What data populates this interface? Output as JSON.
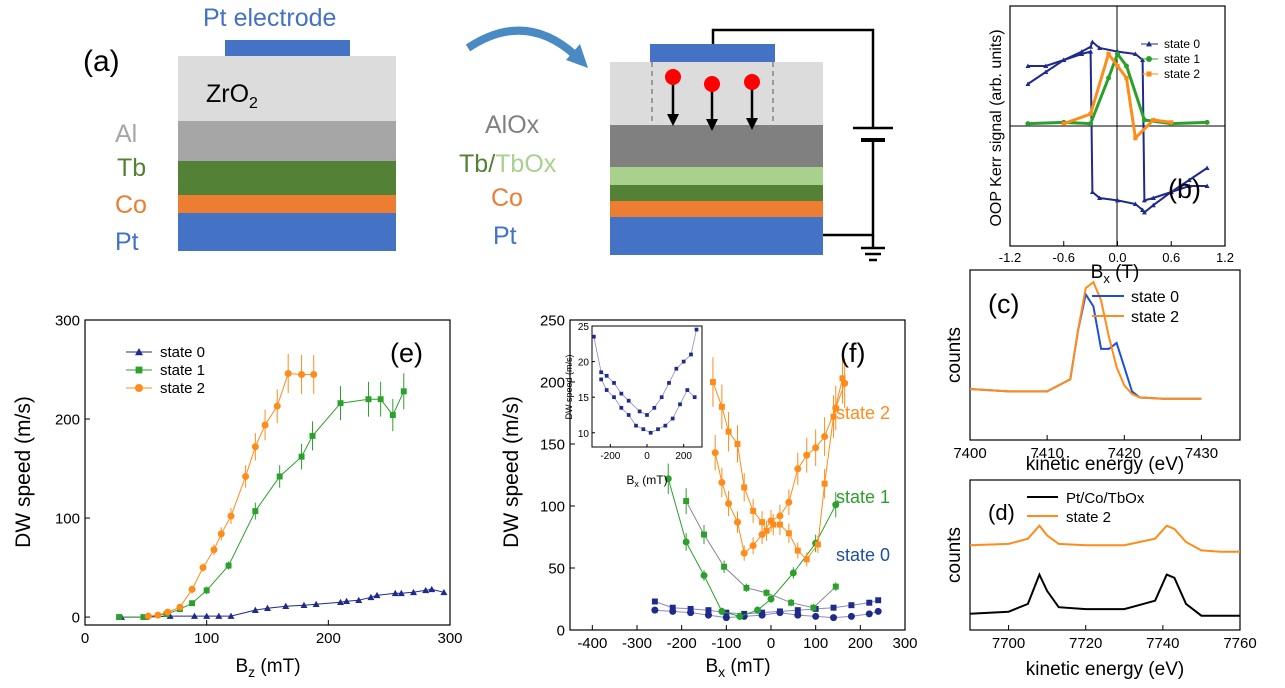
{
  "panel_a": {
    "panel_label": "(a)",
    "electrode_label": "Pt electrode",
    "left_stack": [
      {
        "label": "ZrO",
        "sub": "2",
        "color": "#dcdcdc"
      },
      {
        "label": "Al",
        "color": "#a6a6a6"
      },
      {
        "label": "Tb",
        "color": "#538135"
      },
      {
        "label": "Co",
        "color": "#ed7d31"
      },
      {
        "label": "Pt",
        "color": "#4472c4"
      }
    ],
    "right_labels": {
      "aloxs": "AlOx",
      "tb": "Tb",
      "slash": "/",
      "tbox": "TbOx",
      "co": "Co",
      "pt": "Pt"
    },
    "colors": {
      "electrode": "#4472c4",
      "alox": "#808080",
      "tbox": "#a9d18e",
      "arrow": "#4a8ac4",
      "ion": "#ff0000"
    }
  },
  "panel_labels": {
    "b": "(b)",
    "c": "(c)",
    "d": "(d)",
    "e": "(e)",
    "f": "(f)"
  },
  "colors": {
    "state0": "#1f2a8c",
    "state1": "#2ca02c",
    "state2": "#ff8c1a",
    "state0_c": "#1f4fd8",
    "state2_c": "#ff8c1a",
    "ref_d": "#000000"
  },
  "chart_data": [
    {
      "id": "b",
      "type": "line",
      "xlabel": "B",
      "xlabel_sub": "x",
      "xlabel_unit": " (T)",
      "ylabel": "OOP Kerr signal (arb. units)",
      "xlim": [
        -1.2,
        1.2
      ],
      "ylim": [
        -1,
        1
      ],
      "xticks": [
        "-1.2",
        "-0.6",
        "0.0",
        "0.6",
        "1.2"
      ],
      "legend": [
        "state 0",
        "state 1",
        "state 2"
      ],
      "series": [
        {
          "name": "state 0",
          "x": [
            -1.0,
            -0.8,
            -0.6,
            -0.4,
            -0.3,
            -0.28,
            -0.2,
            0.0,
            0.2,
            0.28,
            0.3,
            0.4,
            0.6,
            0.8,
            1.0
          ],
          "y_down": [
            0.5,
            0.5,
            0.55,
            0.6,
            0.62,
            -0.55,
            -0.6,
            -0.62,
            -0.65,
            -0.7,
            -0.72,
            -0.66,
            -0.55,
            -0.45,
            -0.35
          ],
          "y_up": [
            0.35,
            0.45,
            0.55,
            0.62,
            0.66,
            0.7,
            0.65,
            0.62,
            0.6,
            0.55,
            -0.62,
            -0.6,
            -0.55,
            -0.5,
            -0.5
          ]
        },
        {
          "name": "state 1",
          "x": [
            -1.0,
            -0.6,
            -0.3,
            -0.1,
            0.0,
            0.1,
            0.3,
            0.6,
            1.0
          ],
          "y": [
            0.02,
            0.03,
            0.02,
            0.4,
            0.6,
            0.5,
            0.05,
            0.02,
            0.03
          ]
        },
        {
          "name": "state 2",
          "x": [
            -0.6,
            -0.3,
            -0.1,
            0.0,
            0.1,
            0.2,
            0.4,
            0.6
          ],
          "y": [
            0.02,
            0.1,
            0.6,
            0.5,
            0.4,
            -0.1,
            0.05,
            0.03
          ]
        }
      ]
    },
    {
      "id": "c",
      "type": "line",
      "xlabel": "kinetic energy (eV)",
      "ylabel": "counts",
      "xlim": [
        7400,
        7435
      ],
      "xticks": [
        7400,
        7410,
        7420,
        7430
      ],
      "legend": [
        "state 0",
        "state 2"
      ],
      "series": [
        {
          "name": "state 0",
          "x": [
            7400,
            7405,
            7410,
            7413,
            7414,
            7415,
            7416,
            7417,
            7418,
            7419,
            7420,
            7421,
            7422,
            7425,
            7430
          ],
          "y": [
            0.12,
            0.1,
            0.1,
            0.2,
            0.6,
            0.9,
            0.8,
            0.45,
            0.45,
            0.5,
            0.3,
            0.1,
            0.05,
            0.04,
            0.04
          ]
        },
        {
          "name": "state 2",
          "x": [
            7400,
            7405,
            7410,
            7413,
            7414,
            7415,
            7416,
            7417,
            7418,
            7419,
            7420,
            7421,
            7422,
            7425,
            7430
          ],
          "y": [
            0.12,
            0.1,
            0.1,
            0.2,
            0.6,
            0.95,
            1.0,
            0.85,
            0.55,
            0.3,
            0.15,
            0.08,
            0.05,
            0.04,
            0.04
          ]
        }
      ]
    },
    {
      "id": "d",
      "type": "line",
      "xlabel": "kinetic energy (eV)",
      "ylabel": "counts",
      "xlim": [
        7690,
        7760
      ],
      "xticks": [
        7700,
        7720,
        7740,
        7760
      ],
      "legend": [
        "Pt/Co/TbOx",
        "state 2"
      ],
      "series": [
        {
          "name": "Pt/Co/TbOx",
          "x": [
            7690,
            7700,
            7705,
            7708,
            7710,
            7713,
            7720,
            7730,
            7738,
            7741,
            7743,
            7746,
            7750,
            7755,
            7760
          ],
          "y": [
            0.15,
            0.18,
            0.3,
            0.75,
            0.5,
            0.25,
            0.22,
            0.22,
            0.35,
            0.75,
            0.7,
            0.3,
            0.12,
            0.12,
            0.12
          ]
        },
        {
          "name": "state 2",
          "x": [
            7690,
            7700,
            7705,
            7708,
            7710,
            7713,
            7720,
            7730,
            7738,
            7741,
            7743,
            7746,
            7750,
            7755,
            7760
          ],
          "y": [
            1.2,
            1.22,
            1.3,
            1.5,
            1.35,
            1.22,
            1.2,
            1.2,
            1.3,
            1.5,
            1.45,
            1.25,
            1.12,
            1.1,
            1.1
          ]
        }
      ]
    },
    {
      "id": "e",
      "type": "line",
      "xlabel": "B",
      "xlabel_sub": "z",
      "xlabel_unit": " (mT)",
      "ylabel": "DW speed (m/s)",
      "xlim": [
        0,
        300
      ],
      "ylim": [
        0,
        300
      ],
      "xticks": [
        0,
        100,
        200,
        300
      ],
      "yticks": [
        0,
        100,
        200,
        300
      ],
      "legend": [
        "state 0",
        "state 1",
        "state 2"
      ],
      "series": [
        {
          "name": "state 0",
          "x": [
            30,
            50,
            70,
            90,
            100,
            110,
            120,
            140,
            150,
            165,
            180,
            190,
            210,
            215,
            225,
            235,
            240,
            255,
            260,
            270,
            280,
            285,
            295
          ],
          "y": [
            0,
            0,
            1,
            1,
            1,
            1,
            1,
            7,
            9,
            11,
            12,
            13,
            15,
            16,
            17,
            20,
            22,
            24,
            24,
            25,
            27,
            28,
            25
          ]
        },
        {
          "name": "state 1",
          "x": [
            28,
            48,
            67,
            78,
            88,
            100,
            118,
            140,
            160,
            178,
            187,
            210,
            233,
            243,
            253,
            262
          ],
          "y": [
            0,
            0,
            3,
            8,
            14,
            27,
            52,
            107,
            142,
            162,
            183,
            216,
            220,
            220,
            204,
            228
          ]
        },
        {
          "name": "state 2",
          "x": [
            52,
            60,
            68,
            78,
            88,
            97,
            106,
            112,
            120,
            132,
            140,
            148,
            158,
            167,
            178,
            188
          ],
          "y": [
            1,
            2,
            5,
            10,
            28,
            50,
            68,
            84,
            102,
            142,
            172,
            194,
            213,
            246,
            245,
            245
          ]
        }
      ]
    },
    {
      "id": "f",
      "type": "line",
      "xlabel": "B",
      "xlabel_sub": "x",
      "xlabel_unit": " (mT)",
      "ylabel": "DW speed (m/s)",
      "xlim": [
        -450,
        300
      ],
      "ylim": [
        0,
        250
      ],
      "xticks": [
        -400,
        -300,
        -200,
        -100,
        0,
        100,
        200,
        300
      ],
      "yticks": [
        0,
        50,
        100,
        150,
        200,
        250
      ],
      "annotations": [
        "state 2",
        "state 1",
        "state 0"
      ],
      "series": [
        {
          "name": "state 0 (a)",
          "x": [
            -260,
            -220,
            -180,
            -140,
            -100,
            -60,
            -20,
            20,
            60,
            100,
            140,
            180,
            220,
            240
          ],
          "y": [
            23,
            18,
            17,
            16,
            14,
            13,
            14,
            15,
            16,
            17,
            18,
            20,
            22,
            24
          ]
        },
        {
          "name": "state 0 (b)",
          "x": [
            -260,
            -220,
            -180,
            -140,
            -100,
            -60,
            -20,
            20,
            60,
            100,
            140,
            180,
            220,
            240
          ],
          "y": [
            16,
            15,
            14,
            12,
            10,
            11,
            12,
            14,
            12,
            11,
            10,
            11,
            13,
            15
          ]
        },
        {
          "name": "state 1 (a)",
          "x": [
            -230,
            -190,
            -150,
            -110,
            -70,
            -30,
            0,
            50,
            100,
            145
          ],
          "y": [
            122,
            71,
            44,
            15,
            11,
            16,
            25,
            46,
            70,
            101
          ]
        },
        {
          "name": "state 1 (b)",
          "x": [
            -190,
            -150,
            -105,
            -55,
            -10,
            45,
            95,
            145
          ],
          "y": [
            104,
            77,
            51,
            34,
            30,
            22,
            18,
            35
          ]
        },
        {
          "name": "state 2 (a)",
          "x": [
            -130,
            -110,
            -95,
            -75,
            -60,
            -40,
            -20,
            -10,
            5,
            20,
            40,
            60,
            80,
            105,
            120,
            140,
            160
          ],
          "y": [
            200,
            180,
            160,
            150,
            115,
            96,
            87,
            80,
            85,
            85,
            78,
            64,
            57,
            69,
            118,
            172,
            203
          ]
        },
        {
          "name": "state 2 (b)",
          "x": [
            -125,
            -110,
            -95,
            -75,
            -60,
            -40,
            -20,
            0,
            20,
            40,
            60,
            80,
            100,
            120,
            145,
            165
          ],
          "y": [
            143,
            119,
            102,
            87,
            62,
            68,
            77,
            88,
            92,
            103,
            130,
            141,
            147,
            156,
            179,
            199
          ]
        }
      ],
      "inset": {
        "ylabel": "DW speed (m/s)",
        "xlabel": "B",
        "xlabel_sub": "x",
        "xlabel_unit": " (mT)",
        "xlim": [
          -300,
          300
        ],
        "ylim": [
          8,
          25
        ],
        "xticks": [
          -200,
          0,
          200
        ],
        "yticks": [
          10,
          15,
          20,
          25
        ],
        "series": [
          {
            "name": "inset (a)",
            "x": [
              -290,
              -250,
              -220,
              -180,
              -140,
              -100,
              -40,
              0,
              40,
              80,
              120,
              160,
              200,
              240,
              270
            ],
            "y": [
              23.5,
              18.5,
              18,
              17,
              15.5,
              14.5,
              13,
              12.5,
              13.5,
              15,
              17,
              19,
              20,
              21,
              24.5
            ]
          },
          {
            "name": "inset (b)",
            "x": [
              -250,
              -220,
              -180,
              -140,
              -100,
              -60,
              -20,
              20,
              60,
              100,
              140,
              180,
              220,
              260
            ],
            "y": [
              17.5,
              16,
              15,
              13.5,
              12.5,
              11,
              10.5,
              10,
              10.5,
              11,
              12,
              14,
              16,
              15
            ]
          }
        ]
      }
    }
  ]
}
